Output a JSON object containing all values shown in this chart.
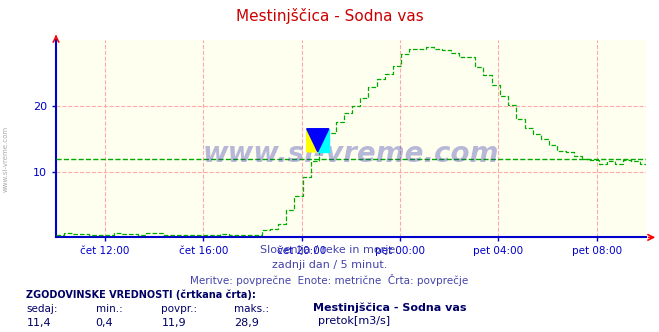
{
  "title": "Mestinjščica - Sodna vas",
  "bg_color": "#ffffff",
  "plot_bg_color": "#fffff0",
  "grid_color": "#ffaaaa",
  "avg_line_color": "#00aa00",
  "avg_value": 11.9,
  "line_color": "#00aa00",
  "axis_color": "#0000cc",
  "title_color": "#cc0000",
  "ylim": [
    0,
    30
  ],
  "yticks": [
    10,
    20
  ],
  "tick_labels": [
    "čet 12:00",
    "čet 16:00",
    "čet 20:00",
    "pet 00:00",
    "pet 04:00",
    "pet 08:00"
  ],
  "tick_positions": [
    2,
    6,
    10,
    14,
    18,
    22
  ],
  "subtitle1": "Slovenija / reke in morje.",
  "subtitle2": "zadnji dan / 5 minut.",
  "subtitle3": "Meritve: povprečne  Enote: metrične  Črta: povprečje",
  "subtitle_color": "#4444aa",
  "legend_label": "Mestinjščica - Sodna vas",
  "legend_unit": "pretok[m3/s]",
  "stat_label1": "ZGODOVINSKE VREDNOSTI (črtkana črta):",
  "stat_headers": [
    "sedaj:",
    "min.:",
    "povpr.:",
    "maks.:"
  ],
  "stat_values": [
    "11,4",
    "0,4",
    "11,9",
    "28,9"
  ],
  "watermark": "www.si-vreme.com",
  "watermark_color": "#3333aa",
  "num_points": 288,
  "xlim": [
    0,
    24
  ]
}
